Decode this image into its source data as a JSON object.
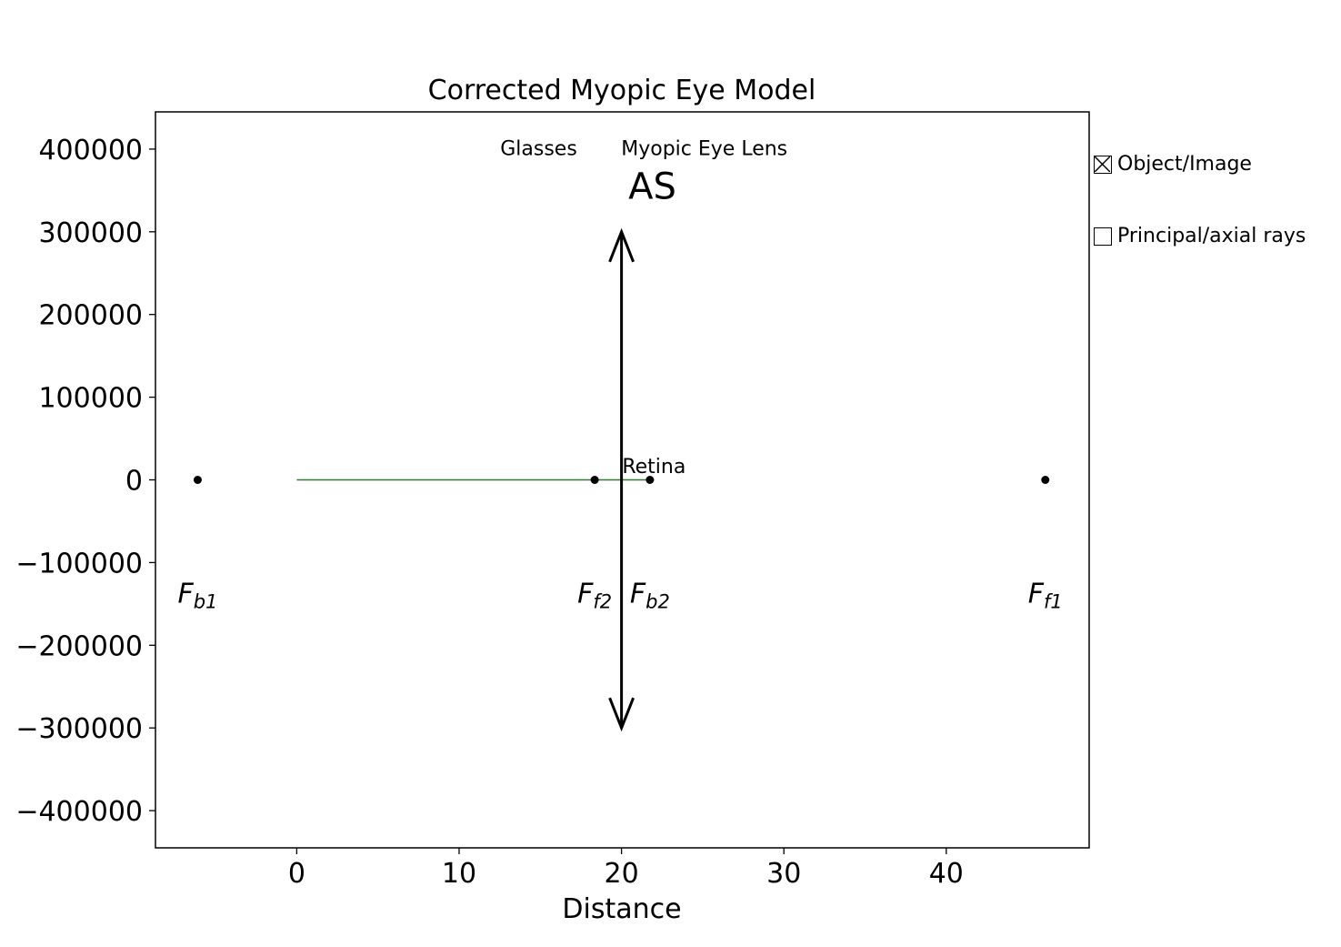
{
  "chart_data": {
    "type": "line",
    "title": "Corrected Myopic Eye Model",
    "xlabel": "Distance",
    "ylabel": "",
    "xlim": [
      -8.7,
      48.8
    ],
    "ylim": [
      -445000,
      445000
    ],
    "xticks": [
      0,
      10,
      20,
      30,
      40
    ],
    "yticks": [
      400000,
      300000,
      200000,
      100000,
      0,
      -100000,
      -200000,
      -300000,
      -400000
    ],
    "ytick_labels": [
      "400000",
      "300000",
      "200000",
      "100000",
      "0",
      "−100000",
      "−200000",
      "−300000",
      "−400000"
    ],
    "xtick_labels": [
      "0",
      "10",
      "20",
      "30",
      "40"
    ],
    "grid": false,
    "series": [
      {
        "values": [
          [
            0,
            0
          ],
          [
            22,
            0
          ]
        ],
        "color": "#2e7d2e"
      }
    ],
    "lens": {
      "x": 20,
      "y_top": 300000,
      "y_bottom": -300000,
      "color": "#000000"
    },
    "focal_points": [
      {
        "x": -6.1,
        "y": 0,
        "main": "F",
        "sub": "b1"
      },
      {
        "x": 18.35,
        "y": 0,
        "main": "F",
        "sub": "f2"
      },
      {
        "x": 21.75,
        "y": 0,
        "main": "F",
        "sub": "b2"
      },
      {
        "x": 46.1,
        "y": 0,
        "main": "F",
        "sub": "f1"
      }
    ],
    "annotations": [
      {
        "text": "Glasses",
        "x": 14.9,
        "y": 393000,
        "size": 22
      },
      {
        "text": "Myopic Eye Lens",
        "x": 25.1,
        "y": 393000,
        "size": 22
      },
      {
        "text": "AS",
        "x": 21.9,
        "y": 340000,
        "size": 40
      },
      {
        "text": "Retina",
        "x": 22.0,
        "y": 8000,
        "size": 22
      }
    ],
    "legend": [
      {
        "label": "Object/Image",
        "checked": true
      },
      {
        "label": "Principal/axial rays",
        "checked": false
      }
    ],
    "legend_position": "right"
  }
}
